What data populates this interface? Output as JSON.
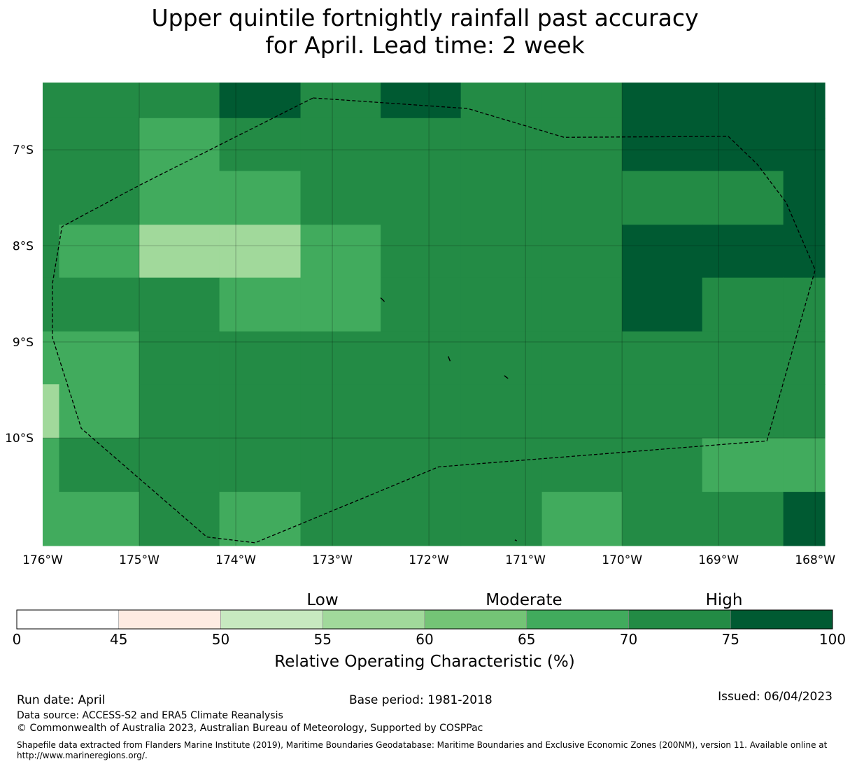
{
  "title": {
    "line1": "Upper quintile fortnightly rainfall past accuracy",
    "line2": "for April. Lead time: 2 week"
  },
  "map": {
    "lon_range": [
      -176,
      -167.9
    ],
    "lat_range": [
      -11.12,
      -6.3
    ],
    "lon_ticks": [
      {
        "value": -176,
        "label": "176°W"
      },
      {
        "value": -175,
        "label": "175°W"
      },
      {
        "value": -174,
        "label": "174°W"
      },
      {
        "value": -173,
        "label": "173°W"
      },
      {
        "value": -172,
        "label": "172°W"
      },
      {
        "value": -171,
        "label": "171°W"
      },
      {
        "value": -170,
        "label": "170°W"
      },
      {
        "value": -169,
        "label": "169°W"
      },
      {
        "value": -168,
        "label": "168°W"
      }
    ],
    "lat_ticks": [
      {
        "value": -7,
        "label": "7°S"
      },
      {
        "value": -8,
        "label": "8°S"
      },
      {
        "value": -9,
        "label": "9°S"
      },
      {
        "value": -10,
        "label": "10°S"
      }
    ],
    "lon_edges": [
      -176,
      -175.83,
      -175,
      -174.17,
      -173.33,
      -172.5,
      -171.67,
      -170.83,
      -170,
      -169.17,
      -168.33,
      -167.9
    ],
    "lat_edges": [
      -6.3,
      -6.67,
      -7.22,
      -7.78,
      -8.33,
      -8.89,
      -9.44,
      -10,
      -10.56,
      -11.12
    ],
    "grid_roc": [
      [
        70,
        70,
        70,
        80,
        72,
        80,
        72,
        72,
        80,
        80,
        80
      ],
      [
        70,
        70,
        65,
        70,
        70,
        72,
        72,
        70,
        80,
        80,
        80
      ],
      [
        72,
        70,
        65,
        65,
        70,
        70,
        70,
        70,
        72,
        72,
        80
      ],
      [
        72,
        65,
        58,
        58,
        65,
        70,
        72,
        72,
        80,
        80,
        80
      ],
      [
        70,
        70,
        70,
        65,
        65,
        70,
        72,
        72,
        80,
        72,
        72
      ],
      [
        65,
        65,
        72,
        70,
        70,
        70,
        70,
        70,
        72,
        72,
        72
      ],
      [
        58,
        65,
        72,
        70,
        70,
        70,
        70,
        70,
        70,
        72,
        72
      ],
      [
        65,
        70,
        72,
        72,
        72,
        70,
        70,
        70,
        72,
        65,
        65
      ],
      [
        65,
        65,
        70,
        65,
        70,
        72,
        70,
        65,
        70,
        72,
        80
      ]
    ],
    "eez_boundary": [
      [
        -173.2,
        -6.46
      ],
      [
        -171.6,
        -6.57
      ],
      [
        -170.6,
        -6.87
      ],
      [
        -168.9,
        -6.86
      ],
      [
        -168.6,
        -7.15
      ],
      [
        -168.3,
        -7.55
      ],
      [
        -168,
        -8.25
      ],
      [
        -168.5,
        -10.03
      ],
      [
        -171.9,
        -10.3
      ],
      [
        -173.8,
        -11.09
      ],
      [
        -174.3,
        -11.03
      ],
      [
        -175.6,
        -9.9
      ],
      [
        -175.9,
        -8.95
      ],
      [
        -175.9,
        -8.4
      ],
      [
        -175.8,
        -7.8
      ],
      [
        -175,
        -7.37
      ],
      [
        -173.2,
        -6.46
      ]
    ],
    "islands": [
      [
        [
          -172.5,
          -8.54
        ],
        [
          -172.46,
          -8.58
        ]
      ],
      [
        [
          -171.8,
          -9.15
        ],
        [
          -171.78,
          -9.2
        ]
      ],
      [
        [
          -171.22,
          -9.35
        ],
        [
          -171.18,
          -9.38
        ]
      ],
      [
        [
          -171.11,
          -11.06
        ],
        [
          -171.09,
          -11.07
        ]
      ]
    ]
  },
  "colorbar": {
    "boundaries": [
      0,
      45,
      50,
      55,
      60,
      65,
      70,
      75,
      100
    ],
    "tick_labels": [
      "0",
      "45",
      "50",
      "55",
      "60",
      "65",
      "70",
      "75",
      "100"
    ],
    "colors": [
      "#ffffff",
      "#feebe2",
      "#c7e9c0",
      "#a1d99b",
      "#74c476",
      "#41ab5d",
      "#238b45",
      "#005a32"
    ],
    "category_labels": {
      "low": "Low",
      "moderate": "Moderate",
      "high": "High"
    },
    "xlabel": "Relative Operating Characteristic (%)"
  },
  "footer": {
    "run_date": "Run date: April",
    "base_period": "Base period: 1981-2018",
    "issued": "Issued: 06/04/2023",
    "data_source": "Data source: ACCESS-S2 and ERA5 Climate Reanalysis",
    "copyright": "© Commonwealth of Australia 2023, Australian Bureau of Meteorology, Supported by COSPPac",
    "shapefile": "Shapefile data extracted from Flanders Marine Institute (2019), Maritime Boundaries Geodatabase: Maritime Boundaries and Exclusive Economic Zones (200NM), version 11. Available online at http://www.marineregions.org/."
  }
}
